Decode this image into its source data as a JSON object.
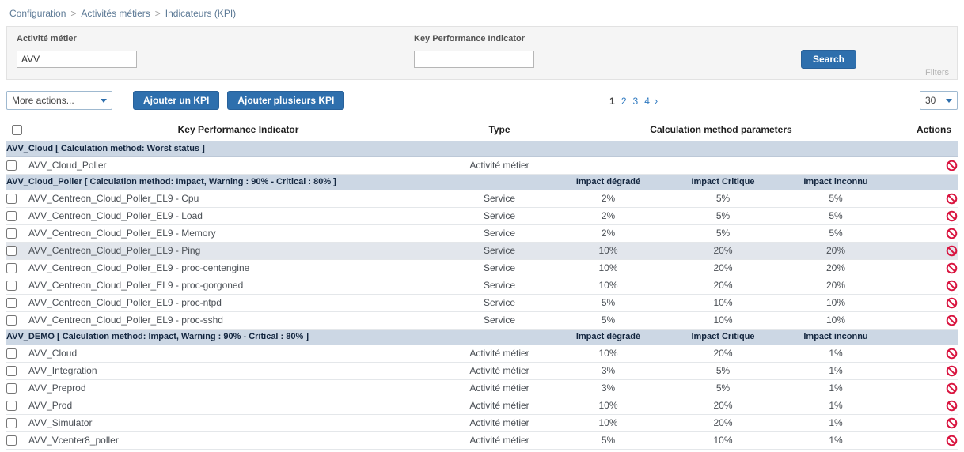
{
  "breadcrumb": {
    "items": [
      "Configuration",
      "Activités métiers",
      "Indicateurs (KPI)"
    ],
    "separator": ">"
  },
  "filters": {
    "activity_label": "Activité métier",
    "activity_value": "AVV",
    "kpi_label": "Key Performance Indicator",
    "kpi_value": "",
    "search_label": "Search",
    "filters_label": "Filters"
  },
  "toolbar": {
    "more_actions": "More actions...",
    "add_kpi": "Ajouter un KPI",
    "add_multiple_kpi": "Ajouter plusieurs KPI",
    "page_size": "30"
  },
  "pagination": {
    "pages": [
      "1",
      "2",
      "3",
      "4"
    ],
    "current": "1",
    "next": "›"
  },
  "table": {
    "headers": {
      "kpi": "Key Performance Indicator",
      "type": "Type",
      "params": "Calculation method parameters",
      "actions": "Actions"
    },
    "groups": [
      {
        "title": "AVV_Cloud [ Calculation method: Worst status ]",
        "param_headers": [
          "",
          "",
          ""
        ],
        "rows": [
          {
            "name": "AVV_Cloud_Poller",
            "type": "Activité métier",
            "params": [
              "",
              "",
              ""
            ],
            "highlight": false
          }
        ]
      },
      {
        "title": "AVV_Cloud_Poller [ Calculation method: Impact, Warning : 90% - Critical : 80% ]",
        "param_headers": [
          "Impact dégradé",
          "Impact Critique",
          "Impact inconnu"
        ],
        "rows": [
          {
            "name": "AVV_Centreon_Cloud_Poller_EL9 - Cpu",
            "type": "Service",
            "params": [
              "2%",
              "5%",
              "5%"
            ],
            "highlight": false
          },
          {
            "name": "AVV_Centreon_Cloud_Poller_EL9 - Load",
            "type": "Service",
            "params": [
              "2%",
              "5%",
              "5%"
            ],
            "highlight": false
          },
          {
            "name": "AVV_Centreon_Cloud_Poller_EL9 - Memory",
            "type": "Service",
            "params": [
              "2%",
              "5%",
              "5%"
            ],
            "highlight": false
          },
          {
            "name": "AVV_Centreon_Cloud_Poller_EL9 - Ping",
            "type": "Service",
            "params": [
              "10%",
              "20%",
              "20%"
            ],
            "highlight": true
          },
          {
            "name": "AVV_Centreon_Cloud_Poller_EL9 - proc-centengine",
            "type": "Service",
            "params": [
              "10%",
              "20%",
              "20%"
            ],
            "highlight": false
          },
          {
            "name": "AVV_Centreon_Cloud_Poller_EL9 - proc-gorgoned",
            "type": "Service",
            "params": [
              "10%",
              "20%",
              "20%"
            ],
            "highlight": false
          },
          {
            "name": "AVV_Centreon_Cloud_Poller_EL9 - proc-ntpd",
            "type": "Service",
            "params": [
              "5%",
              "10%",
              "10%"
            ],
            "highlight": false
          },
          {
            "name": "AVV_Centreon_Cloud_Poller_EL9 - proc-sshd",
            "type": "Service",
            "params": [
              "5%",
              "10%",
              "10%"
            ],
            "highlight": false
          }
        ]
      },
      {
        "title": "AVV_DEMO [ Calculation method: Impact, Warning : 90% - Critical : 80% ]",
        "param_headers": [
          "Impact dégradé",
          "Impact Critique",
          "Impact inconnu"
        ],
        "rows": [
          {
            "name": "AVV_Cloud",
            "type": "Activité métier",
            "params": [
              "10%",
              "20%",
              "1%"
            ],
            "highlight": false
          },
          {
            "name": "AVV_Integration",
            "type": "Activité métier",
            "params": [
              "3%",
              "5%",
              "1%"
            ],
            "highlight": false
          },
          {
            "name": "AVV_Preprod",
            "type": "Activité métier",
            "params": [
              "3%",
              "5%",
              "1%"
            ],
            "highlight": false
          },
          {
            "name": "AVV_Prod",
            "type": "Activité métier",
            "params": [
              "10%",
              "20%",
              "1%"
            ],
            "highlight": false
          },
          {
            "name": "AVV_Simulator",
            "type": "Activité métier",
            "params": [
              "10%",
              "20%",
              "1%"
            ],
            "highlight": false
          },
          {
            "name": "AVV_Vcenter8_poller",
            "type": "Activité métier",
            "params": [
              "5%",
              "10%",
              "1%"
            ],
            "highlight": false
          }
        ]
      }
    ]
  },
  "colors": {
    "accent_blue": "#2e6fad",
    "link_blue": "#2e79c0",
    "group_row_bg": "#ccd7e4",
    "danger_red": "#d9143f"
  }
}
